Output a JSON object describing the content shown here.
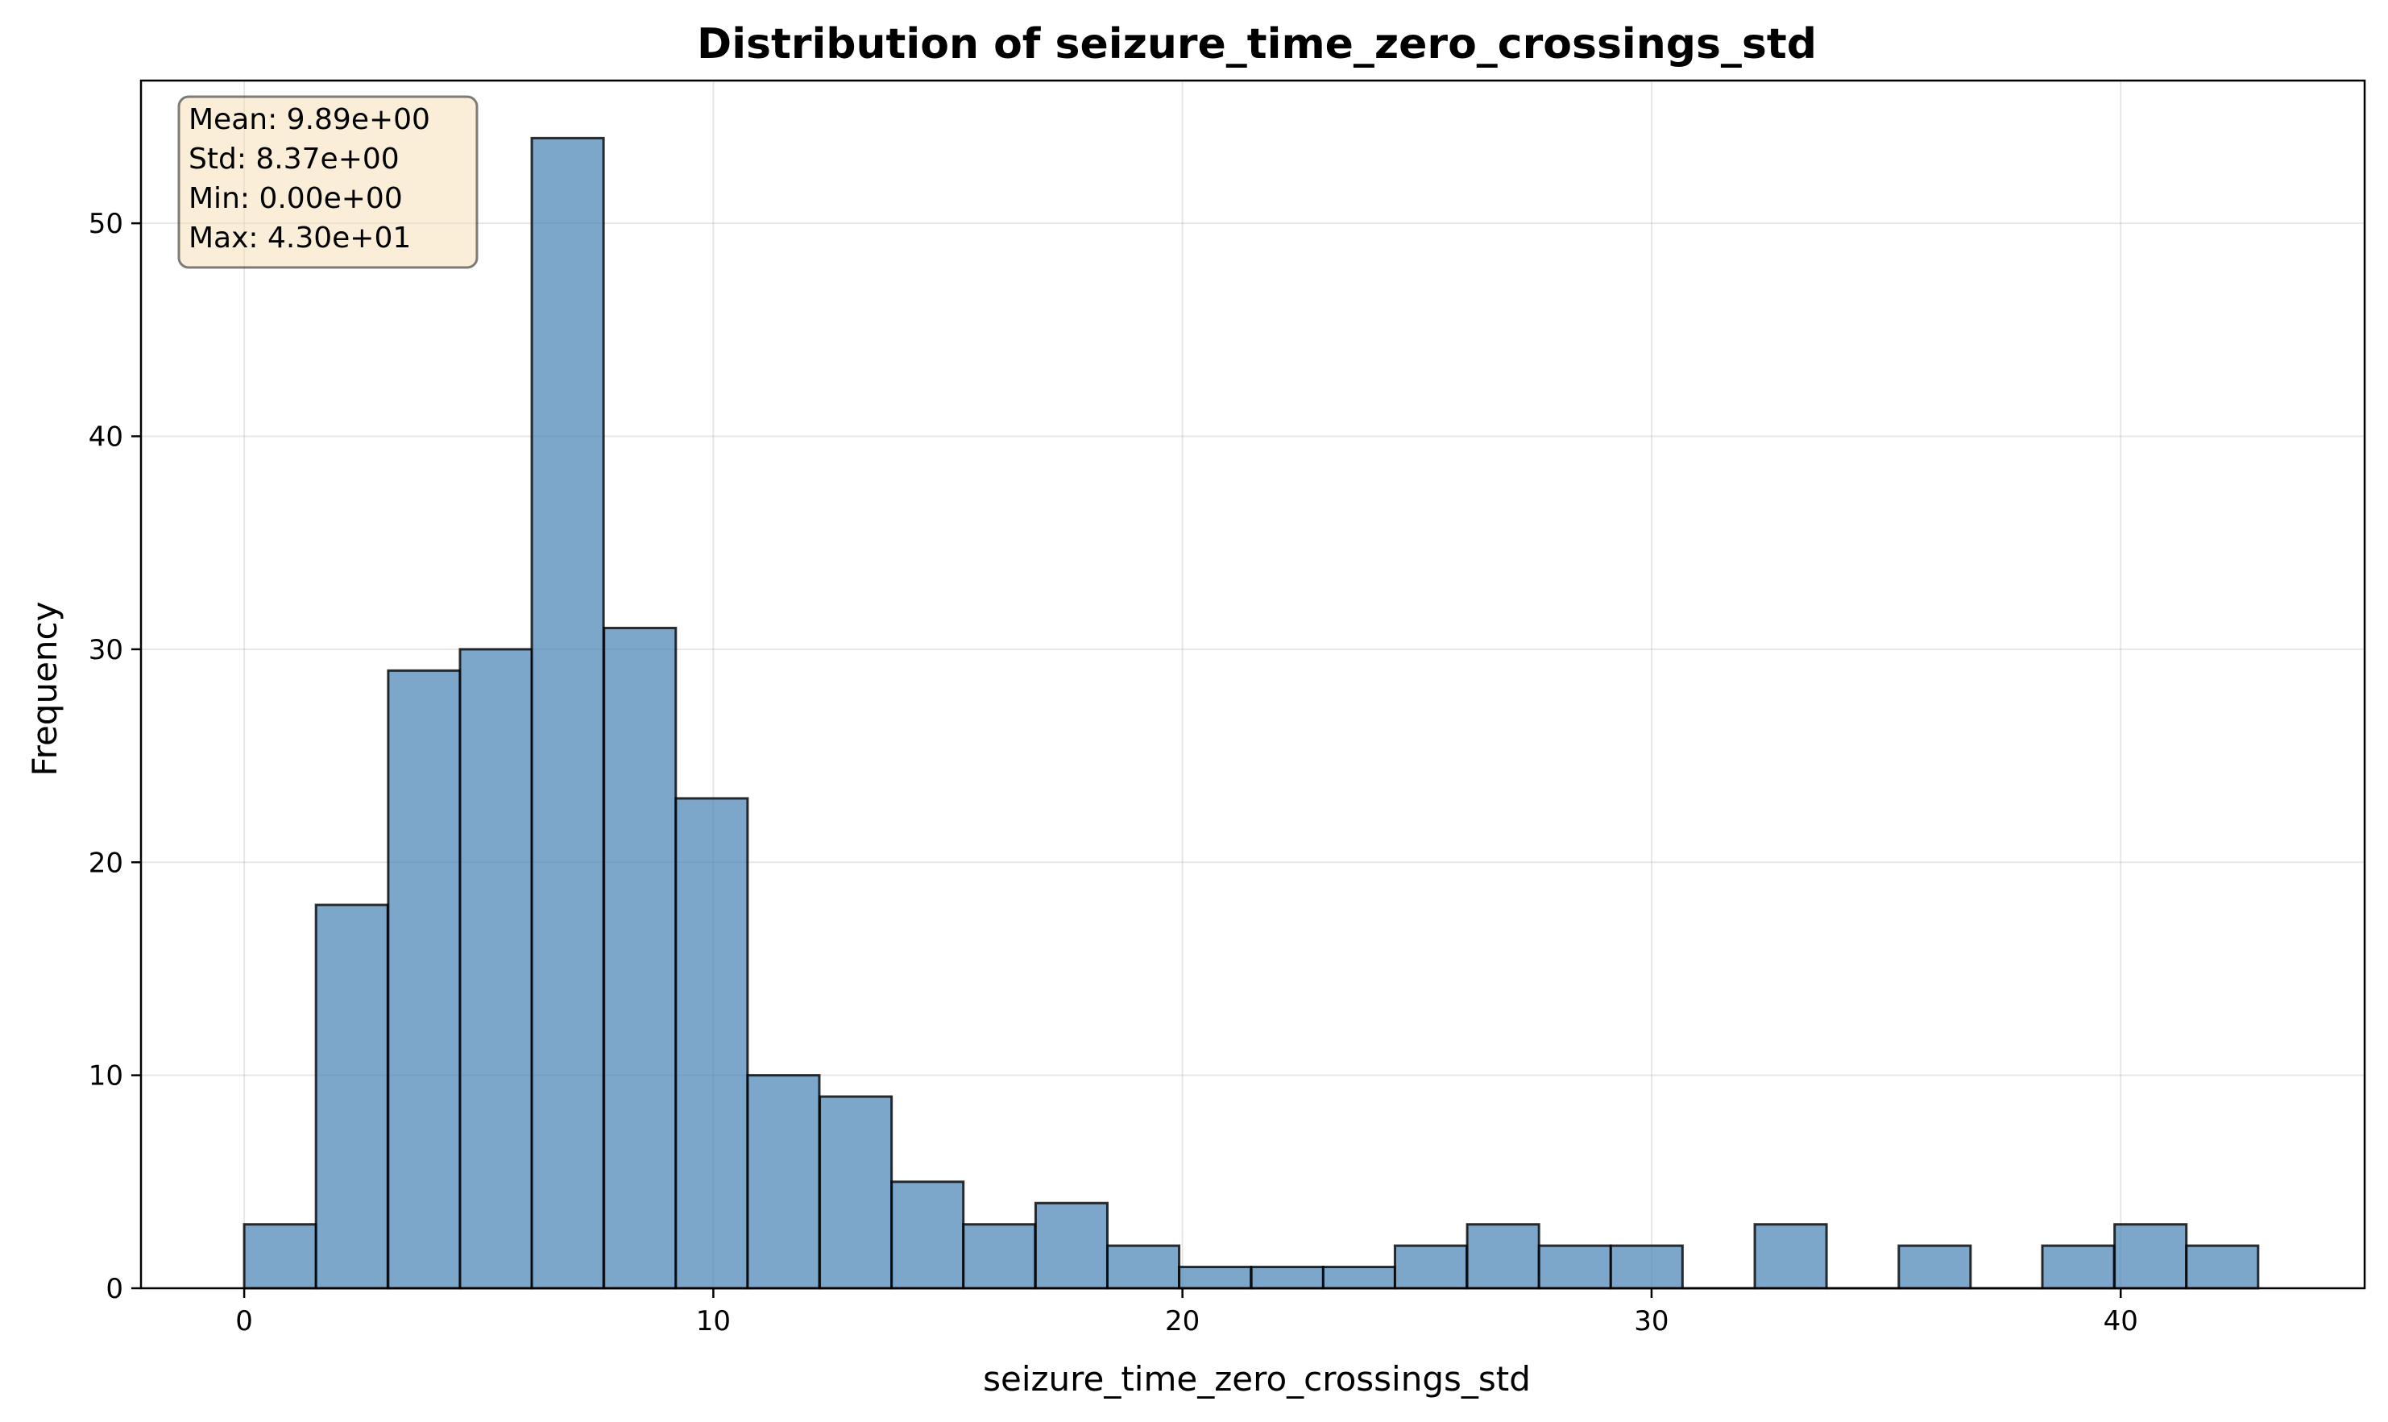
{
  "chart_data": {
    "type": "bar",
    "title": "Distribution of seizure_time_zero_crossings_std",
    "xlabel": "seizure_time_zero_crossings_std",
    "ylabel": "Frequency",
    "xlim": [
      -2.2,
      45.2
    ],
    "ylim": [
      0,
      56.7
    ],
    "x_ticks": [
      0,
      10,
      20,
      30,
      40
    ],
    "y_ticks": [
      0,
      10,
      20,
      30,
      40,
      50
    ],
    "grid": true,
    "bar_color": "#4682b4",
    "bar_alpha": 0.7,
    "edge_color": "#000000",
    "bin_width": 1.53,
    "bin_starts": [
      0,
      1.53,
      3.07,
      4.6,
      6.13,
      7.67,
      9.2,
      10.73,
      12.27,
      13.8,
      15.33,
      16.87,
      18.4,
      19.93,
      21.47,
      23.0,
      24.53,
      26.07,
      27.6,
      29.13,
      30.67,
      32.2,
      33.73,
      35.27,
      36.8,
      38.33,
      39.87,
      41.4
    ],
    "values": [
      3,
      18,
      29,
      30,
      54,
      31,
      23,
      10,
      9,
      5,
      3,
      4,
      2,
      1,
      1,
      1,
      2,
      3,
      2,
      2,
      0,
      3,
      0,
      2,
      0,
      2,
      3,
      2
    ],
    "stats_box": {
      "lines": [
        "Mean: 9.89e+00",
        "Std: 8.37e+00",
        "Min: 0.00e+00",
        "Max: 4.30e+01"
      ],
      "placement": "top-left",
      "background": "#f5deb3"
    }
  }
}
